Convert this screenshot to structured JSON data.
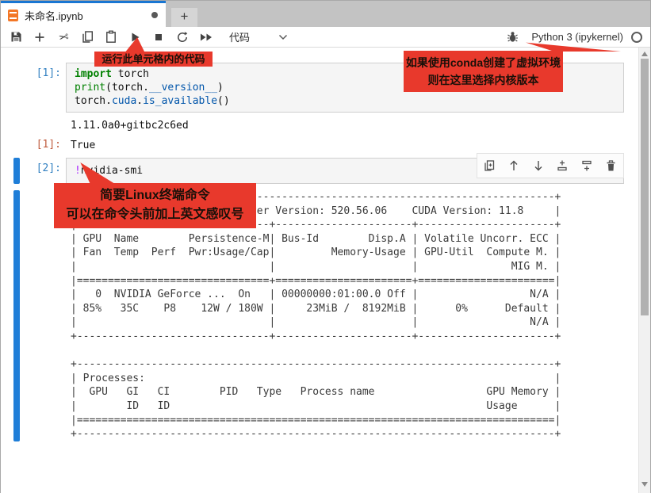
{
  "tab": {
    "title": "未命名.ipynb",
    "new_tab_label": "+"
  },
  "toolbar": {
    "buttons": [
      "save",
      "insert-cell-below",
      "cut-cells",
      "copy-cells",
      "paste-cells",
      "run-cell",
      "interrupt-kernel",
      "restart-kernel",
      "restart-and-run-all"
    ],
    "cell_type": "代码",
    "kernel": {
      "name": "Python 3 (ipykernel)",
      "bug_icon": "debugger-bug-icon",
      "status_icon": "kernel-idle-circle"
    }
  },
  "callouts": {
    "run": {
      "lines": [
        "运行此单元格内的代码"
      ]
    },
    "bang": {
      "lines": [
        "简要Linux终端命令",
        "可以在命令头前加上英文感叹号"
      ]
    },
    "kernel": {
      "lines": [
        "如果使用conda创建了虚拟环境",
        "则在这里选择内核版本"
      ]
    }
  },
  "cells": [
    {
      "execution_count": "[1]:",
      "code": [
        [
          {
            "t": "import",
            "c": "kw"
          },
          {
            "t": " torch",
            "c": ""
          }
        ],
        [
          {
            "t": "print",
            "c": "bi"
          },
          {
            "t": "(torch.",
            "c": ""
          },
          {
            "t": "__version__",
            "c": "prop"
          },
          {
            "t": ")",
            "c": ""
          }
        ],
        [
          {
            "t": "torch",
            "c": ""
          },
          {
            "t": ".",
            "c": ""
          },
          {
            "t": "cuda",
            "c": "prop"
          },
          {
            "t": ".",
            "c": ""
          },
          {
            "t": "is_available",
            "c": "prop"
          },
          {
            "t": "()",
            "c": ""
          }
        ]
      ],
      "outputs": [
        {
          "prompt": "",
          "text": "1.11.0a0+gitbc2c6ed"
        },
        {
          "prompt": "[1]:",
          "text": "True"
        }
      ]
    },
    {
      "execution_count": "[2]:",
      "code": [
        [
          {
            "t": "!",
            "c": "meta"
          },
          {
            "t": "nvidia-smi",
            "c": ""
          }
        ]
      ],
      "output_lines": [
        "+-----------------------------------------------------------------------------+",
        "| NVIDIA-SMI 520.56.06    Driver Version: 520.56.06    CUDA Version: 11.8     |",
        "|-------------------------------+----------------------+----------------------+",
        "| GPU  Name        Persistence-M| Bus-Id        Disp.A | Volatile Uncorr. ECC |",
        "| Fan  Temp  Perf  Pwr:Usage/Cap|         Memory-Usage | GPU-Util  Compute M. |",
        "|                               |                      |               MIG M. |",
        "|===============================+======================+======================|",
        "|   0  NVIDIA GeForce ...  On   | 00000000:01:00.0 Off |                  N/A |",
        "| 85%   35C    P8    12W / 180W |     23MiB /  8192MiB |      0%      Default |",
        "|                               |                      |                  N/A |",
        "+-------------------------------+----------------------+----------------------+",
        "",
        "+-----------------------------------------------------------------------------+",
        "| Processes:                                                                  |",
        "|  GPU   GI   CI        PID   Type   Process name                  GPU Memory |",
        "|        ID   ID                                                   Usage      |",
        "|=============================================================================|",
        "+-----------------------------------------------------------------------------+"
      ]
    }
  ],
  "cell_toolbar": {
    "buttons": [
      "duplicate-cell",
      "move-cell-up",
      "move-cell-down",
      "insert-cell-above",
      "insert-cell-below",
      "delete-cell"
    ]
  },
  "colors": {
    "accent_blue": "#1976d2",
    "active_cell_bar": "#1f7ed8",
    "callout_red": "#e8392c",
    "input_prompt": "#307fc1",
    "output_prompt": "#bf5b3d",
    "keyword_green": "#008000",
    "property_blue": "#0055aa",
    "meta_purple": "#aa22ff",
    "jupyter_orange": "#f37726"
  }
}
